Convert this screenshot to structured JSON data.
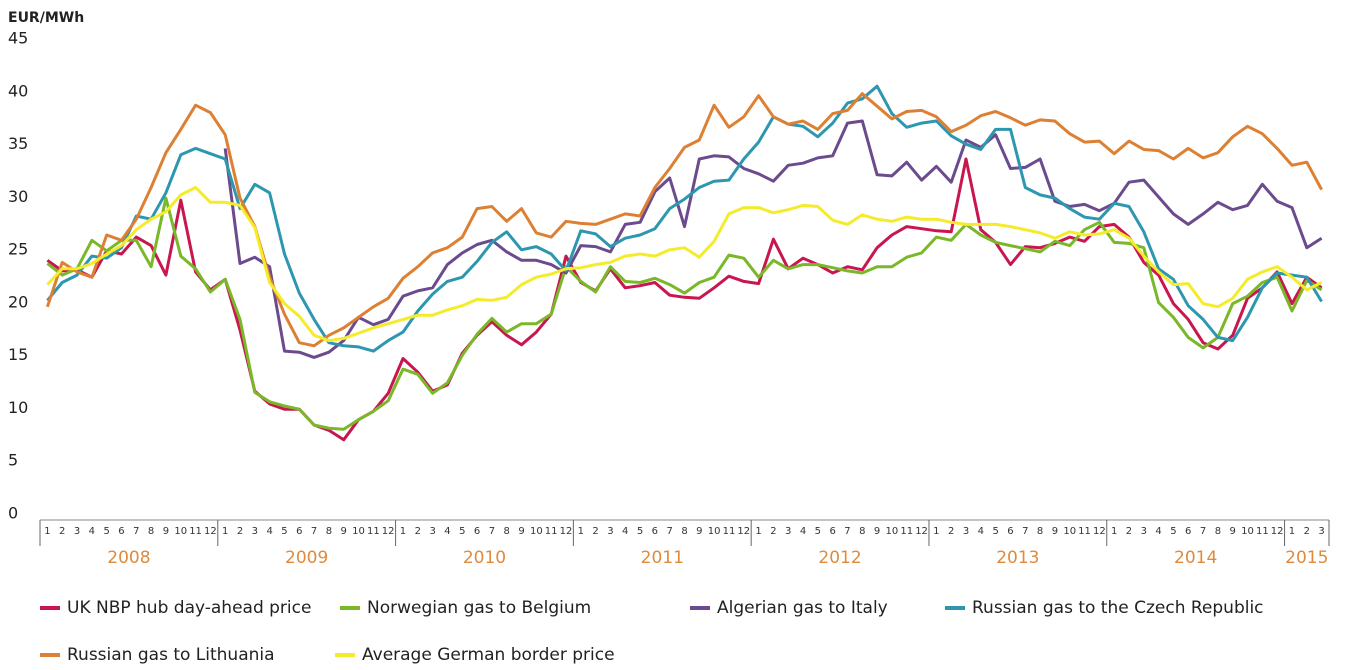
{
  "chart_data": {
    "type": "line",
    "y_label": "EUR/MWh",
    "ylim": [
      0,
      45
    ],
    "yticks": [
      0,
      5,
      10,
      15,
      20,
      25,
      30,
      35,
      40,
      45
    ],
    "legend": "bottom",
    "categories": [
      "1",
      "2",
      "3",
      "4",
      "5",
      "6",
      "7",
      "8",
      "9",
      "10",
      "11",
      "12",
      "1",
      "2",
      "3",
      "4",
      "5",
      "6",
      "7",
      "8",
      "9",
      "10",
      "11",
      "12",
      "1",
      "2",
      "3",
      "4",
      "5",
      "6",
      "7",
      "8",
      "9",
      "10",
      "11",
      "12",
      "1",
      "2",
      "3",
      "4",
      "5",
      "6",
      "7",
      "8",
      "9",
      "10",
      "11",
      "12",
      "1",
      "2",
      "3",
      "4",
      "5",
      "6",
      "7",
      "8",
      "9",
      "10",
      "11",
      "12",
      "1",
      "2",
      "3",
      "4",
      "5",
      "6",
      "7",
      "8",
      "9",
      "10",
      "11",
      "12",
      "1",
      "2",
      "3",
      "4",
      "5",
      "6",
      "7",
      "8",
      "9",
      "10",
      "11",
      "12",
      "1",
      "2",
      "3"
    ],
    "years": [
      "2008",
      "2009",
      "2010",
      "2011",
      "2012",
      "2013",
      "2014",
      "2015"
    ],
    "series": [
      {
        "name": "UK NBP hub day-ahead price",
        "color": "#c8164e",
        "values": [
          24.6,
          23.6,
          23.7,
          23.0,
          25.5,
          25.2,
          26.8,
          26.0,
          23.2,
          30.3,
          23.5,
          21.8,
          22.8,
          18.0,
          12.2,
          11.0,
          10.5,
          10.5,
          9.0,
          8.5,
          7.6,
          9.5,
          10.3,
          12.0,
          15.3,
          14.0,
          12.2,
          12.8,
          15.8,
          17.5,
          18.8,
          17.5,
          16.6,
          17.8,
          19.5,
          25.0,
          22.5,
          21.7,
          23.8,
          22.0,
          22.2,
          22.5,
          21.3,
          21.1,
          21.0,
          22.0,
          23.1,
          22.6,
          22.4,
          26.6,
          23.8,
          24.8,
          24.2,
          23.4,
          24.0,
          23.7,
          25.8,
          27.0,
          27.8,
          27.6,
          27.4,
          27.3,
          34.2,
          27.5,
          26.3,
          24.2,
          25.9,
          25.8,
          26.2,
          26.8,
          26.4,
          27.8,
          28.0,
          26.8,
          24.4,
          23.2,
          20.5,
          19.0,
          16.8,
          16.2,
          17.5,
          21.0,
          22.0,
          23.5,
          20.5,
          23.0,
          22.0
        ]
      },
      {
        "name": "Norwegian gas to Belgium",
        "color": "#7ab829",
        "values": [
          24.3,
          23.2,
          23.8,
          26.5,
          25.5,
          26.5,
          26.5,
          24.0,
          30.5,
          25.0,
          23.8,
          21.6,
          22.8,
          19.0,
          12.1,
          11.2,
          10.8,
          10.5,
          9.0,
          8.7,
          8.6,
          9.5,
          10.3,
          11.3,
          14.3,
          13.8,
          12.0,
          13.0,
          15.6,
          17.6,
          19.1,
          17.8,
          18.6,
          18.6,
          19.5,
          24.0,
          22.6,
          21.6,
          24.0,
          22.6,
          22.5,
          22.9,
          22.3,
          21.5,
          22.5,
          23.0,
          25.1,
          24.8,
          23.0,
          24.6,
          23.8,
          24.2,
          24.2,
          23.9,
          23.6,
          23.4,
          24.0,
          24.0,
          24.9,
          25.3,
          26.8,
          26.5,
          28.0,
          27.0,
          26.3,
          26.0,
          25.7,
          25.4,
          26.4,
          26.0,
          27.5,
          28.2,
          26.3,
          26.2,
          25.8,
          20.6,
          19.2,
          17.3,
          16.3,
          17.3,
          20.5,
          21.2,
          22.5,
          23.0,
          19.8,
          22.7,
          21.8
        ]
      },
      {
        "name": "Algerian gas to Italy",
        "color": "#6b4a8e",
        "values": [
          null,
          null,
          null,
          null,
          null,
          null,
          null,
          null,
          null,
          null,
          null,
          null,
          35.2,
          24.3,
          24.9,
          24.0,
          16.0,
          15.9,
          15.4,
          15.9,
          17.0,
          19.2,
          18.5,
          19.0,
          21.2,
          21.7,
          22.0,
          24.2,
          25.3,
          26.1,
          26.5,
          25.4,
          24.6,
          24.6,
          24.2,
          23.4,
          26.0,
          25.9,
          25.4,
          28.0,
          28.2,
          31.1,
          32.4,
          27.8,
          34.2,
          34.5,
          34.4,
          33.3,
          32.8,
          32.1,
          33.6,
          33.8,
          34.3,
          34.5,
          37.6,
          37.8,
          32.7,
          32.6,
          33.9,
          32.2,
          33.5,
          32.0,
          36.0,
          35.3,
          36.5,
          33.3,
          33.4,
          34.2,
          30.2,
          29.7,
          29.9,
          29.3,
          30.0,
          32.0,
          32.2,
          30.6,
          29.0,
          28.0,
          29.0,
          30.1,
          29.4,
          29.8,
          31.8,
          30.2,
          29.6,
          25.8,
          26.7
        ]
      },
      {
        "name": "Russian gas to the Czech Republic",
        "color": "#2e97b0",
        "values": [
          20.8,
          22.5,
          23.2,
          25.0,
          24.8,
          25.8,
          28.8,
          28.5,
          31.0,
          34.6,
          35.2,
          34.7,
          34.2,
          29.5,
          31.8,
          31.0,
          25.2,
          21.5,
          19.0,
          16.8,
          16.5,
          16.4,
          16.0,
          17.0,
          17.8,
          19.8,
          21.4,
          22.6,
          23.0,
          24.5,
          26.3,
          27.3,
          25.6,
          25.9,
          25.2,
          23.6,
          27.4,
          27.1,
          25.9,
          26.7,
          27.0,
          27.6,
          29.5,
          30.4,
          31.5,
          32.1,
          32.2,
          34.2,
          35.8,
          38.2,
          37.5,
          37.3,
          36.3,
          37.6,
          39.5,
          39.9,
          41.1,
          38.5,
          37.2,
          37.6,
          37.8,
          36.4,
          35.6,
          35.1,
          37.0,
          37.0,
          31.5,
          30.8,
          30.5,
          29.5,
          28.7,
          28.5,
          30.0,
          29.7,
          27.3,
          23.8,
          22.8,
          20.3,
          19.0,
          17.3,
          17.0,
          19.2,
          22.0,
          23.4,
          23.2,
          23.0,
          20.7
        ]
      },
      {
        "name": "Russian gas to Lithuania",
        "color": "#dd8033",
        "values": [
          20.2,
          24.4,
          23.5,
          23.0,
          27.0,
          26.5,
          28.5,
          31.5,
          34.8,
          37.0,
          39.3,
          38.6,
          36.5,
          30.5,
          27.8,
          23.0,
          19.5,
          16.8,
          16.5,
          17.5,
          18.2,
          19.2,
          20.2,
          21.0,
          22.9,
          24.0,
          25.3,
          25.8,
          26.8,
          29.5,
          29.7,
          28.3,
          29.5,
          27.2,
          26.8,
          28.3,
          28.1,
          28.0,
          28.5,
          29.0,
          28.8,
          31.5,
          33.3,
          35.3,
          36.0,
          39.3,
          37.2,
          38.2,
          40.2,
          38.2,
          37.5,
          37.8,
          37.0,
          38.5,
          38.8,
          40.4,
          39.2,
          38.0,
          38.7,
          38.8,
          38.2,
          36.8,
          37.4,
          38.3,
          38.7,
          38.1,
          37.4,
          37.9,
          37.8,
          36.6,
          35.8,
          35.9,
          34.7,
          35.9,
          35.1,
          35.0,
          34.2,
          35.2,
          34.3,
          34.8,
          36.3,
          37.3,
          36.6,
          35.2,
          33.6,
          33.9,
          31.3
        ]
      },
      {
        "name": "Average German border price",
        "color": "#f4ec2a",
        "values": [
          22.3,
          23.8,
          23.8,
          24.3,
          25.2,
          26.0,
          27.5,
          28.5,
          29.2,
          30.8,
          31.5,
          30.1,
          30.1,
          29.8,
          27.7,
          22.5,
          20.5,
          19.3,
          17.5,
          17.0,
          17.2,
          17.7,
          18.2,
          18.6,
          19.0,
          19.4,
          19.4,
          19.9,
          20.3,
          20.9,
          20.8,
          21.1,
          22.3,
          23.0,
          23.3,
          23.8,
          23.9,
          24.2,
          24.4,
          25.0,
          25.2,
          25.0,
          25.6,
          25.8,
          24.9,
          26.4,
          29.0,
          29.6,
          29.6,
          29.1,
          29.4,
          29.8,
          29.7,
          28.4,
          28.0,
          28.9,
          28.5,
          28.3,
          28.7,
          28.5,
          28.5,
          28.2,
          28.0,
          28.0,
          28.0,
          27.8,
          27.5,
          27.2,
          26.7,
          27.3,
          27.0,
          27.1,
          27.5,
          26.7,
          25.0,
          23.5,
          22.3,
          22.4,
          20.5,
          20.2,
          21.0,
          22.8,
          23.5,
          24.0,
          23.0,
          21.8,
          22.5
        ]
      }
    ]
  }
}
